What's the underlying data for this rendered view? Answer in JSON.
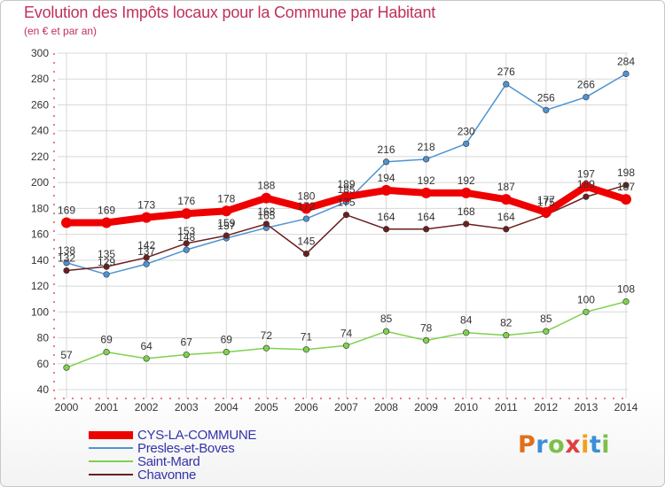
{
  "header": {
    "title": "Evolution des Impôts locaux pour la Commune par Habitant",
    "subtitle": "(en € et par an)"
  },
  "logo": {
    "text": "Proxiti"
  },
  "colors": {
    "title": "#c0305a",
    "legend_text": "#3333aa",
    "axis": "#cc0000",
    "grid": "#d8d8d8",
    "logo_p": "#e0701a",
    "logo_r": "#3a8fd8",
    "logo_o": "#7cc04a",
    "logo_x": "#e04040",
    "logo_i": "#f0a020",
    "logo_t": "#3a8fd8",
    "logo_i2": "#7cc04a"
  },
  "chart_data": {
    "type": "line",
    "title": "Evolution des Impôts locaux pour la Commune par Habitant",
    "ylabel": "(en € et par an)",
    "xlabel": "",
    "ylim": [
      40,
      300
    ],
    "yticks": [
      40,
      60,
      80,
      100,
      120,
      140,
      160,
      180,
      200,
      220,
      240,
      260,
      280,
      300
    ],
    "x": [
      "2000",
      "2001",
      "2002",
      "2003",
      "2004",
      "2005",
      "2006",
      "2007",
      "2008",
      "2009",
      "2010",
      "2011",
      "2012",
      "2013",
      "2014"
    ],
    "legend_position": "bottom-left",
    "series": [
      {
        "name": "CYS-LA-COMMUNE",
        "color": "#ee0000",
        "values": [
          169,
          169,
          173,
          176,
          178,
          188,
          180,
          189,
          194,
          192,
          192,
          187,
          177,
          197,
          187
        ]
      },
      {
        "name": "Presles-et-Boves",
        "color": "#4f93d3",
        "values": [
          138,
          129,
          137,
          148,
          157,
          165,
          172,
          185,
          216,
          218,
          230,
          276,
          256,
          266,
          284
        ]
      },
      {
        "name": "Saint-Mard",
        "color": "#7fd14f",
        "values": [
          57,
          69,
          64,
          67,
          69,
          72,
          71,
          74,
          85,
          78,
          84,
          82,
          85,
          100,
          108
        ]
      },
      {
        "name": "Chavonne",
        "color": "#6b1f1f",
        "values": [
          132,
          135,
          142,
          153,
          159,
          168,
          145,
          175,
          164,
          164,
          168,
          164,
          175,
          189,
          198
        ]
      }
    ]
  }
}
